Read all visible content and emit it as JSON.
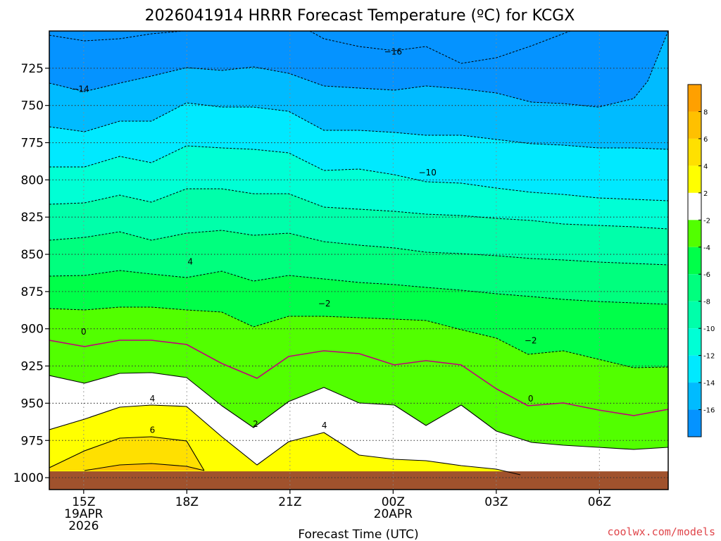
{
  "chart_data": {
    "type": "heatmap",
    "title": "2026041914 HRRR Forecast Temperature (ºC) for KCGX",
    "xlabel": "Forecast Time (UTC)",
    "ylabel": "",
    "credit": "coolwx.com/models",
    "x_ticks": [
      {
        "hour": 0,
        "lines": [
          "15Z",
          "19APR",
          "2026"
        ]
      },
      {
        "hour": 3,
        "lines": [
          "18Z"
        ]
      },
      {
        "hour": 6,
        "lines": [
          "21Z"
        ]
      },
      {
        "hour": 9,
        "lines": [
          "00Z",
          "20APR"
        ]
      },
      {
        "hour": 12,
        "lines": [
          "03Z"
        ]
      },
      {
        "hour": 15,
        "lines": [
          "06Z"
        ]
      }
    ],
    "xlim_hours": [
      -1,
      17
    ],
    "y_ticks": [
      "725",
      "750",
      "775",
      "800",
      "825",
      "850",
      "875",
      "900",
      "925",
      "950",
      "975",
      "1000"
    ],
    "ylim_hPa": [
      1008,
      700
    ],
    "ground_hPa": 1000,
    "colorbar_labels": [
      "8",
      "6",
      "4",
      "2",
      "-2",
      "-4",
      "-6",
      "-8",
      "-10",
      "-12",
      "-14",
      "-16"
    ],
    "colors": {
      "t_lt_m16": "#0593ff",
      "t_m16_m14": "#00bbff",
      "t_m14_m12": "#00e9ff",
      "t_m12_m10": "#00ffd5",
      "t_m10_m8": "#00ffaa",
      "t_m8_m6": "#00ff7e",
      "t_m6_m4": "#00ff49",
      "t_m4_m2": "#52ff00",
      "t_m2_2": "#ffffff",
      "t_2_4": "#ffff00",
      "t_4_6": "#ffe000",
      "t_6_8": "#ffc000",
      "t_gt_8": "#ffa000",
      "ground": "#a0522d",
      "zero_line": "#c0007a"
    },
    "contour_labels": [
      {
        "text": "−16",
        "hour": 9.0,
        "hPa": 714
      },
      {
        "text": "−14",
        "hour": -0.1,
        "hPa": 739
      },
      {
        "text": "−10",
        "hour": 10.0,
        "hPa": 795
      },
      {
        "text": "4",
        "hour": 3.1,
        "hPa": 855
      },
      {
        "text": "−2",
        "hour": 7.0,
        "hPa": 883
      },
      {
        "text": "0",
        "hour": 0.0,
        "hPa": 902
      },
      {
        "text": "−2",
        "hour": 13.0,
        "hPa": 908
      },
      {
        "text": "0",
        "hour": 13.0,
        "hPa": 947
      },
      {
        "text": "4",
        "hour": 2.0,
        "hPa": 947
      },
      {
        "text": "2",
        "hour": 5.0,
        "hPa": 964
      },
      {
        "text": "6",
        "hour": 2.0,
        "hPa": 968
      },
      {
        "text": "4",
        "hour": 7.0,
        "hPa": 965
      }
    ]
  }
}
